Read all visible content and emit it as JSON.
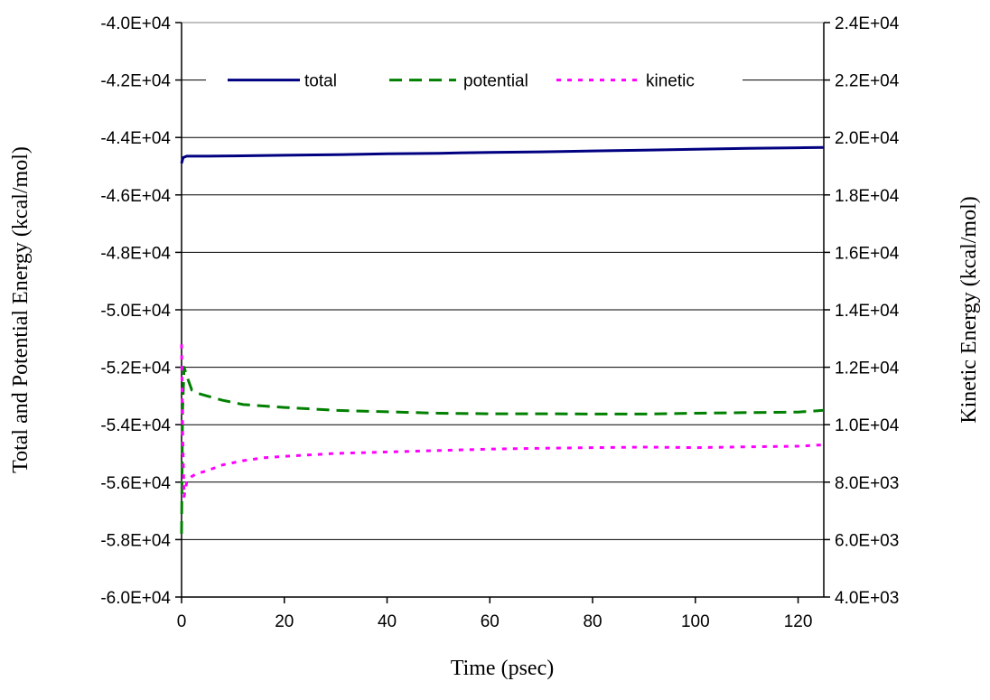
{
  "chart_data": {
    "type": "line",
    "title": "",
    "xlabel": "Time (psec)",
    "ylabel_left": "Total and Potential Energy (kcal/mol)",
    "ylabel_right": "Kinetic Energy (kcal/mol)",
    "xlim": [
      0,
      125
    ],
    "ylim_left": [
      -60000,
      -40000
    ],
    "ylim_right": [
      4000,
      24000
    ],
    "x_ticks": [
      0,
      20,
      40,
      60,
      80,
      100,
      120
    ],
    "x_tick_labels": [
      "0",
      "20",
      "40",
      "60",
      "80",
      "100",
      "120"
    ],
    "y_ticks_left": [
      -60000,
      -58000,
      -56000,
      -54000,
      -52000,
      -50000,
      -48000,
      -46000,
      -44000,
      -42000,
      -40000
    ],
    "y_tick_labels_left": [
      "-6.0E+04",
      "-5.8E+04",
      "-5.6E+04",
      "-5.4E+04",
      "-5.2E+04",
      "-5.0E+04",
      "-4.8E+04",
      "-4.6E+04",
      "-4.4E+04",
      "-4.2E+04",
      "-4.0E+04"
    ],
    "y_ticks_right": [
      4000,
      6000,
      8000,
      10000,
      12000,
      14000,
      16000,
      18000,
      20000,
      22000,
      24000
    ],
    "y_tick_labels_right": [
      "4.0E+03",
      "6.0E+03",
      "8.0E+03",
      "1.0E+04",
      "1.2E+04",
      "1.4E+04",
      "1.6E+04",
      "1.8E+04",
      "2.0E+04",
      "2.2E+04",
      "2.4E+04"
    ],
    "grid": "horizontal",
    "legend_position": "top",
    "series": [
      {
        "name": "total",
        "axis": "left",
        "color": "#000080",
        "style": "solid",
        "x": [
          0,
          0.3,
          1,
          5,
          10,
          20,
          30,
          40,
          50,
          60,
          70,
          80,
          90,
          100,
          110,
          120,
          125
        ],
        "y": [
          -44900,
          -44700,
          -44650,
          -44650,
          -44640,
          -44620,
          -44600,
          -44570,
          -44550,
          -44520,
          -44500,
          -44470,
          -44440,
          -44410,
          -44380,
          -44360,
          -44350
        ]
      },
      {
        "name": "potential",
        "axis": "left",
        "color": "#008000",
        "style": "dashed",
        "x": [
          0,
          0.2,
          0.5,
          1,
          2,
          3,
          5,
          8,
          12,
          16,
          20,
          25,
          30,
          40,
          50,
          60,
          70,
          80,
          90,
          100,
          110,
          120,
          125
        ],
        "y": [
          -57800,
          -53500,
          -52000,
          -52300,
          -52800,
          -52900,
          -53000,
          -53150,
          -53300,
          -53350,
          -53400,
          -53450,
          -53500,
          -53550,
          -53600,
          -53620,
          -53620,
          -53630,
          -53630,
          -53600,
          -53580,
          -53560,
          -53500
        ]
      },
      {
        "name": "kinetic",
        "axis": "right",
        "color": "#ff00ff",
        "style": "dotted",
        "x": [
          0,
          0.2,
          0.5,
          1,
          2,
          3,
          5,
          8,
          12,
          16,
          20,
          25,
          30,
          40,
          50,
          60,
          70,
          80,
          90,
          100,
          110,
          120,
          125
        ],
        "y": [
          12800,
          9800,
          7500,
          8000,
          8200,
          8300,
          8400,
          8600,
          8750,
          8850,
          8900,
          8950,
          9000,
          9050,
          9100,
          9150,
          9180,
          9200,
          9220,
          9200,
          9230,
          9250,
          9300
        ]
      }
    ]
  }
}
